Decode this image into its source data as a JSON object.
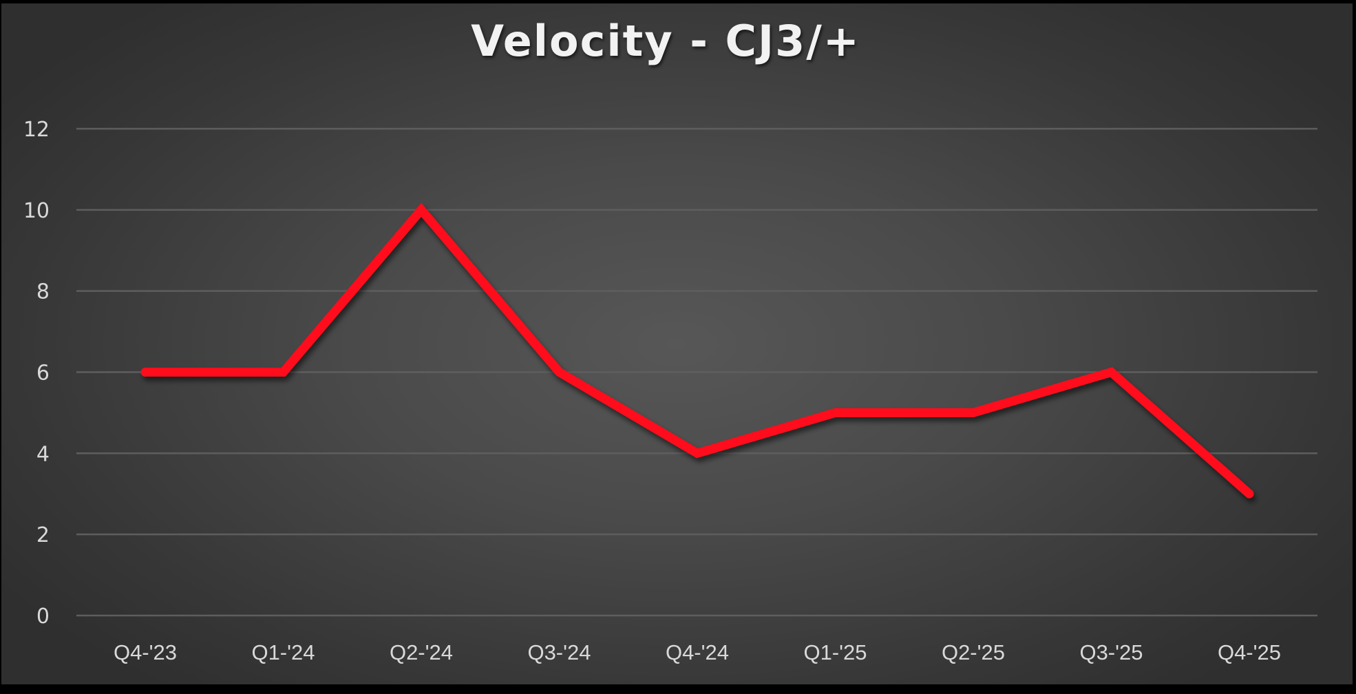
{
  "chart_data": {
    "type": "line",
    "title": "Velocity - CJ3/+",
    "xlabel": "",
    "ylabel": "",
    "categories": [
      "Q4-'23",
      "Q1-'24",
      "Q2-'24",
      "Q3-'24",
      "Q4-'24",
      "Q1-'25",
      "Q2-'25",
      "Q3-'25",
      "Q4-'25"
    ],
    "series": [
      {
        "name": "Velocity - CJ3/+",
        "values": [
          6,
          6,
          10,
          6,
          4,
          5,
          5,
          6,
          3
        ],
        "color": "#ff0a1a"
      }
    ],
    "ylim": [
      0,
      12
    ],
    "yticks": [
      0,
      2,
      4,
      6,
      8,
      10,
      12
    ],
    "grid": true,
    "legend": "none"
  },
  "colors": {
    "background_center": "#575757",
    "background_edge": "#2f2f2f",
    "gridline": "#5e5e5e",
    "text": "#d9d9d9",
    "line": "#ff0a1a"
  }
}
